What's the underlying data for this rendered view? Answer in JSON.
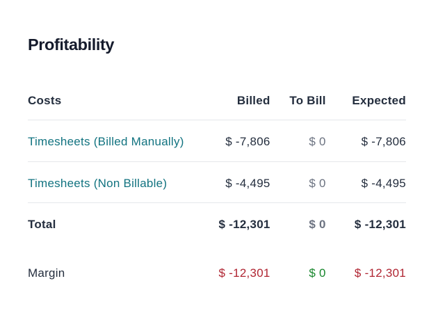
{
  "section": {
    "title": "Profitability"
  },
  "table": {
    "columns": {
      "costs": "Costs",
      "billed": "Billed",
      "to_bill": "To Bill",
      "expected": "Expected"
    },
    "rows": [
      {
        "label": "Timesheets (Billed Manually)",
        "billed": "$ -7,806",
        "to_bill": "$ 0",
        "expected": "$ -7,806"
      },
      {
        "label": "Timesheets (Non Billable)",
        "billed": "$ -4,495",
        "to_bill": "$ 0",
        "expected": "$ -4,495"
      }
    ],
    "total_row": {
      "label": "Total",
      "billed": "$ -12,301",
      "to_bill": "$ 0",
      "expected": "$ -12,301"
    },
    "margin_row": {
      "label": "Margin",
      "billed": "$ -12,301",
      "to_bill": "$ 0",
      "expected": "$ -12,301"
    }
  },
  "colors": {
    "title_text": "#151b2c",
    "body_text": "#242e3e",
    "link_teal": "#127380",
    "muted_gray": "#6b7280",
    "negative_red": "#b02532",
    "positive_green": "#17862c",
    "divider": "#e5e7eb",
    "background": "#ffffff"
  }
}
